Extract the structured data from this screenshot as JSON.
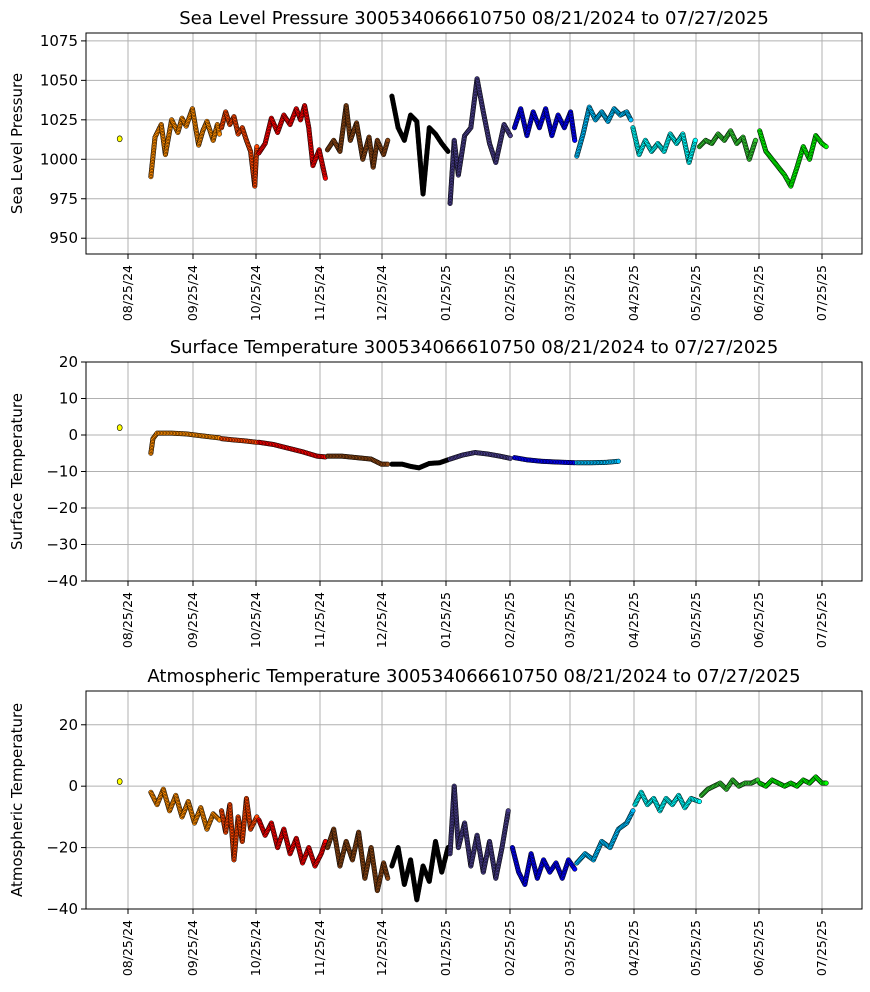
{
  "chart_data": [
    {
      "type": "scatter",
      "title": "Sea Level Pressure 300534066610750  08/21/2024 to 07/27/2025",
      "ylabel": "Sea Level Pressure",
      "xlabel": "",
      "ylim": [
        940,
        1080
      ],
      "yticks": [
        "950",
        "975",
        "1000",
        "1025",
        "1050",
        "1075"
      ],
      "xticks": [
        "08/25/24",
        "09/25/24",
        "10/25/24",
        "11/25/24",
        "12/25/24",
        "01/25/25",
        "02/25/25",
        "03/25/25",
        "04/25/25",
        "05/25/25",
        "06/25/25",
        "07/25/25"
      ],
      "grid": true,
      "x_start": "2024-08-21",
      "x_end": "2025-07-27",
      "series": [
        {
          "color": "#ffff00",
          "x": [
            "2024-08-21"
          ],
          "y": [
            1013
          ]
        },
        {
          "color": "#ff8c00",
          "x": [
            "2024-09-05",
            "2024-09-07",
            "2024-09-10",
            "2024-09-12",
            "2024-09-15",
            "2024-09-18",
            "2024-09-20",
            "2024-09-22",
            "2024-09-25",
            "2024-09-28",
            "2024-09-30",
            "2024-10-02",
            "2024-10-05",
            "2024-10-07",
            "2024-10-08"
          ],
          "y": [
            989,
            1014,
            1022,
            1003,
            1025,
            1017,
            1026,
            1021,
            1032,
            1009,
            1018,
            1024,
            1012,
            1022,
            1016
          ]
        },
        {
          "color": "#ff4500",
          "x": [
            "2024-10-09",
            "2024-10-11",
            "2024-10-13",
            "2024-10-15",
            "2024-10-17",
            "2024-10-19",
            "2024-10-21",
            "2024-10-23",
            "2024-10-25",
            "2024-10-26"
          ],
          "y": [
            1020,
            1030,
            1022,
            1027,
            1016,
            1020,
            1012,
            1005,
            983,
            1008
          ]
        },
        {
          "color": "#ff0000",
          "x": [
            "2024-10-27",
            "2024-10-30",
            "2024-11-02",
            "2024-11-05",
            "2024-11-08",
            "2024-11-11",
            "2024-11-14",
            "2024-11-16",
            "2024-11-18",
            "2024-11-20",
            "2024-11-22",
            "2024-11-25",
            "2024-11-28"
          ],
          "y": [
            1004,
            1010,
            1026,
            1017,
            1028,
            1022,
            1032,
            1025,
            1034,
            1020,
            996,
            1006,
            988
          ]
        },
        {
          "color": "#8b4513",
          "x": [
            "2024-11-29",
            "2024-12-02",
            "2024-12-05",
            "2024-12-08",
            "2024-12-10",
            "2024-12-13",
            "2024-12-16",
            "2024-12-19",
            "2024-12-21",
            "2024-12-23",
            "2024-12-26",
            "2024-12-28"
          ],
          "y": [
            1006,
            1012,
            1005,
            1034,
            1012,
            1023,
            1000,
            1014,
            995,
            1012,
            1003,
            1012
          ]
        },
        {
          "color": "#000000",
          "x": [
            "2024-12-30",
            "2025-01-02",
            "2025-01-05",
            "2025-01-08",
            "2025-01-11",
            "2025-01-14",
            "2025-01-17",
            "2025-01-20",
            "2025-01-23",
            "2025-01-26"
          ],
          "y": [
            1040,
            1020,
            1012,
            1028,
            1024,
            978,
            1020,
            1016,
            1010,
            1005
          ]
        },
        {
          "color": "#483d8b",
          "x": [
            "2025-01-27",
            "2025-01-29",
            "2025-01-31",
            "2025-02-03",
            "2025-02-06",
            "2025-02-09",
            "2025-02-12",
            "2025-02-15",
            "2025-02-18",
            "2025-02-22",
            "2025-02-25"
          ],
          "y": [
            972,
            1012,
            990,
            1015,
            1020,
            1051,
            1030,
            1010,
            998,
            1022,
            1015
          ]
        },
        {
          "color": "#0000ff",
          "x": [
            "2025-02-27",
            "2025-03-02",
            "2025-03-05",
            "2025-03-08",
            "2025-03-11",
            "2025-03-14",
            "2025-03-17",
            "2025-03-20",
            "2025-03-23",
            "2025-03-26",
            "2025-03-28"
          ],
          "y": [
            1020,
            1032,
            1015,
            1030,
            1020,
            1032,
            1015,
            1028,
            1020,
            1030,
            1012
          ]
        },
        {
          "color": "#00bfff",
          "x": [
            "2025-03-29",
            "2025-04-01",
            "2025-04-04",
            "2025-04-07",
            "2025-04-10",
            "2025-04-13",
            "2025-04-16",
            "2025-04-19",
            "2025-04-22",
            "2025-04-24"
          ],
          "y": [
            1002,
            1016,
            1033,
            1025,
            1030,
            1024,
            1032,
            1028,
            1030,
            1025
          ]
        },
        {
          "color": "#00ffff",
          "x": [
            "2025-04-25",
            "2025-04-28",
            "2025-05-01",
            "2025-05-04",
            "2025-05-07",
            "2025-05-10",
            "2025-05-13",
            "2025-05-16",
            "2025-05-19",
            "2025-05-22",
            "2025-05-25"
          ],
          "y": [
            1020,
            1003,
            1012,
            1005,
            1010,
            1005,
            1016,
            1010,
            1016,
            998,
            1012
          ]
        },
        {
          "color": "#32cd32",
          "x": [
            "2025-05-27",
            "2025-05-30",
            "2025-06-02",
            "2025-06-05",
            "2025-06-08",
            "2025-06-11",
            "2025-06-14",
            "2025-06-17",
            "2025-06-20",
            "2025-06-23"
          ],
          "y": [
            1008,
            1012,
            1010,
            1016,
            1012,
            1018,
            1010,
            1014,
            1000,
            1012
          ]
        },
        {
          "color": "#00ff00",
          "x": [
            "2025-06-25",
            "2025-06-28",
            "2025-07-01",
            "2025-07-04",
            "2025-07-07",
            "2025-07-10",
            "2025-07-13",
            "2025-07-16",
            "2025-07-19",
            "2025-07-22",
            "2025-07-25",
            "2025-07-27"
          ],
          "y": [
            1018,
            1005,
            1000,
            995,
            990,
            983,
            995,
            1008,
            1000,
            1015,
            1010,
            1008
          ]
        }
      ]
    },
    {
      "type": "scatter",
      "title": "Surface Temperature 300534066610750  08/21/2024 to 07/27/2025",
      "ylabel": "Surface Temperature",
      "xlabel": "",
      "ylim": [
        -40,
        20
      ],
      "yticks": [
        "−40",
        "−30",
        "−20",
        "−10",
        "0",
        "10",
        "20"
      ],
      "xticks": [
        "08/25/24",
        "09/25/24",
        "10/25/24",
        "11/25/24",
        "12/25/24",
        "01/25/25",
        "02/25/25",
        "03/25/25",
        "04/25/25",
        "05/25/25",
        "06/25/25",
        "07/25/25"
      ],
      "grid": true,
      "x_start": "2024-08-21",
      "x_end": "2025-07-27",
      "series": [
        {
          "color": "#ffff00",
          "x": [
            "2024-08-21"
          ],
          "y": [
            2
          ]
        },
        {
          "color": "#ff8c00",
          "x": [
            "2024-09-05",
            "2024-09-06",
            "2024-09-08",
            "2024-09-15",
            "2024-09-22",
            "2024-09-29",
            "2024-10-08"
          ],
          "y": [
            -5,
            -1,
            0.5,
            0.5,
            0.3,
            -0.2,
            -0.8
          ]
        },
        {
          "color": "#ff4500",
          "x": [
            "2024-10-09",
            "2024-10-14",
            "2024-10-20",
            "2024-10-26"
          ],
          "y": [
            -1,
            -1.3,
            -1.6,
            -2
          ]
        },
        {
          "color": "#ff0000",
          "x": [
            "2024-10-27",
            "2024-11-03",
            "2024-11-10",
            "2024-11-17",
            "2024-11-24",
            "2024-11-28"
          ],
          "y": [
            -2,
            -2.6,
            -3.6,
            -4.6,
            -5.8,
            -6
          ]
        },
        {
          "color": "#8b4513",
          "x": [
            "2024-11-29",
            "2024-12-06",
            "2024-12-13",
            "2024-12-20",
            "2024-12-25",
            "2024-12-28"
          ],
          "y": [
            -5.8,
            -5.8,
            -6.2,
            -6.6,
            -8,
            -8
          ]
        },
        {
          "color": "#000000",
          "x": [
            "2024-12-30",
            "2025-01-04",
            "2025-01-08",
            "2025-01-12",
            "2025-01-17",
            "2025-01-22",
            "2025-01-26"
          ],
          "y": [
            -8,
            -8,
            -8.6,
            -9,
            -7.8,
            -7.6,
            -6.8
          ]
        },
        {
          "color": "#483d8b",
          "x": [
            "2025-01-27",
            "2025-02-02",
            "2025-02-08",
            "2025-02-14",
            "2025-02-20",
            "2025-02-25"
          ],
          "y": [
            -6.6,
            -5.5,
            -4.8,
            -5.2,
            -5.8,
            -6.4
          ]
        },
        {
          "color": "#0000ff",
          "x": [
            "2025-02-27",
            "2025-03-05",
            "2025-03-12",
            "2025-03-19",
            "2025-03-28"
          ],
          "y": [
            -6.2,
            -6.8,
            -7.2,
            -7.4,
            -7.6
          ]
        },
        {
          "color": "#00bfff",
          "x": [
            "2025-03-29",
            "2025-04-05",
            "2025-04-12",
            "2025-04-18"
          ],
          "y": [
            -7.6,
            -7.6,
            -7.5,
            -7.2
          ]
        }
      ]
    },
    {
      "type": "scatter",
      "title": "Atmospheric Temperature 300534066610750  08/21/2024 to 07/27/2025",
      "ylabel": "Atmospheric Temperature",
      "xlabel": "",
      "ylim": [
        -40,
        31
      ],
      "yticks": [
        "−40",
        "−20",
        "0",
        "20"
      ],
      "xticks": [
        "08/25/24",
        "09/25/24",
        "10/25/24",
        "11/25/24",
        "12/25/24",
        "01/25/25",
        "02/25/25",
        "03/25/25",
        "04/25/25",
        "05/25/25",
        "06/25/25",
        "07/25/25"
      ],
      "grid": true,
      "x_start": "2024-08-21",
      "x_end": "2025-07-27",
      "series": [
        {
          "color": "#ffff00",
          "x": [
            "2024-08-21"
          ],
          "y": [
            1.5
          ]
        },
        {
          "color": "#ff8c00",
          "x": [
            "2024-09-05",
            "2024-09-08",
            "2024-09-11",
            "2024-09-14",
            "2024-09-17",
            "2024-09-20",
            "2024-09-23",
            "2024-09-26",
            "2024-09-29",
            "2024-10-02",
            "2024-10-05",
            "2024-10-08"
          ],
          "y": [
            -2,
            -6,
            -1,
            -8,
            -3,
            -10,
            -5,
            -12,
            -7,
            -14,
            -9,
            -11
          ]
        },
        {
          "color": "#ff4500",
          "x": [
            "2024-10-09",
            "2024-10-11",
            "2024-10-13",
            "2024-10-15",
            "2024-10-17",
            "2024-10-19",
            "2024-10-21",
            "2024-10-23",
            "2024-10-26"
          ],
          "y": [
            -8,
            -15,
            -6,
            -24,
            -10,
            -18,
            -4,
            -14,
            -10
          ]
        },
        {
          "color": "#ff0000",
          "x": [
            "2024-10-27",
            "2024-10-30",
            "2024-11-02",
            "2024-11-05",
            "2024-11-08",
            "2024-11-11",
            "2024-11-14",
            "2024-11-17",
            "2024-11-20",
            "2024-11-23",
            "2024-11-26",
            "2024-11-28"
          ],
          "y": [
            -11,
            -16,
            -12,
            -20,
            -14,
            -22,
            -17,
            -25,
            -20,
            -26,
            -22,
            -18
          ]
        },
        {
          "color": "#8b4513",
          "x": [
            "2024-11-29",
            "2024-12-02",
            "2024-12-05",
            "2024-12-08",
            "2024-12-11",
            "2024-12-14",
            "2024-12-17",
            "2024-12-20",
            "2024-12-23",
            "2024-12-26",
            "2024-12-28"
          ],
          "y": [
            -20,
            -14,
            -26,
            -18,
            -24,
            -15,
            -30,
            -20,
            -34,
            -25,
            -30
          ]
        },
        {
          "color": "#000000",
          "x": [
            "2024-12-30",
            "2025-01-02",
            "2025-01-05",
            "2025-01-08",
            "2025-01-11",
            "2025-01-14",
            "2025-01-17",
            "2025-01-20",
            "2025-01-23",
            "2025-01-26"
          ],
          "y": [
            -26,
            -20,
            -32,
            -24,
            -37,
            -26,
            -31,
            -18,
            -28,
            -20
          ]
        },
        {
          "color": "#483d8b",
          "x": [
            "2025-01-27",
            "2025-01-29",
            "2025-01-31",
            "2025-02-03",
            "2025-02-06",
            "2025-02-09",
            "2025-02-12",
            "2025-02-15",
            "2025-02-18",
            "2025-02-21",
            "2025-02-24"
          ],
          "y": [
            -22,
            0,
            -20,
            -12,
            -26,
            -16,
            -28,
            -18,
            -30,
            -20,
            -8
          ]
        },
        {
          "color": "#0000ff",
          "x": [
            "2025-02-26",
            "2025-03-01",
            "2025-03-04",
            "2025-03-07",
            "2025-03-10",
            "2025-03-13",
            "2025-03-16",
            "2025-03-19",
            "2025-03-22",
            "2025-03-25",
            "2025-03-28"
          ],
          "y": [
            -20,
            -28,
            -32,
            -22,
            -30,
            -24,
            -28,
            -25,
            -30,
            -24,
            -27
          ]
        },
        {
          "color": "#00bfff",
          "x": [
            "2025-03-29",
            "2025-04-02",
            "2025-04-06",
            "2025-04-10",
            "2025-04-14",
            "2025-04-18",
            "2025-04-22",
            "2025-04-25"
          ],
          "y": [
            -25,
            -22,
            -24,
            -18,
            -20,
            -14,
            -12,
            -8
          ]
        },
        {
          "color": "#00ffff",
          "x": [
            "2025-04-26",
            "2025-04-29",
            "2025-05-02",
            "2025-05-05",
            "2025-05-08",
            "2025-05-11",
            "2025-05-14",
            "2025-05-17",
            "2025-05-20",
            "2025-05-23",
            "2025-05-27"
          ],
          "y": [
            -6,
            -2,
            -6,
            -4,
            -8,
            -4,
            -6,
            -3,
            -7,
            -4,
            -5
          ]
        },
        {
          "color": "#32cd32",
          "x": [
            "2025-05-28",
            "2025-05-31",
            "2025-06-03",
            "2025-06-06",
            "2025-06-09",
            "2025-06-12",
            "2025-06-15",
            "2025-06-18",
            "2025-06-21",
            "2025-06-24"
          ],
          "y": [
            -3,
            -1,
            0,
            1,
            -1,
            2,
            0,
            1,
            1,
            2
          ]
        },
        {
          "color": "#00ff00",
          "x": [
            "2025-06-25",
            "2025-06-28",
            "2025-07-01",
            "2025-07-04",
            "2025-07-07",
            "2025-07-10",
            "2025-07-13",
            "2025-07-16",
            "2025-07-19",
            "2025-07-22",
            "2025-07-25",
            "2025-07-27"
          ],
          "y": [
            1,
            0,
            2,
            1,
            0,
            1,
            0,
            2,
            1,
            3,
            1,
            1
          ]
        }
      ]
    }
  ]
}
